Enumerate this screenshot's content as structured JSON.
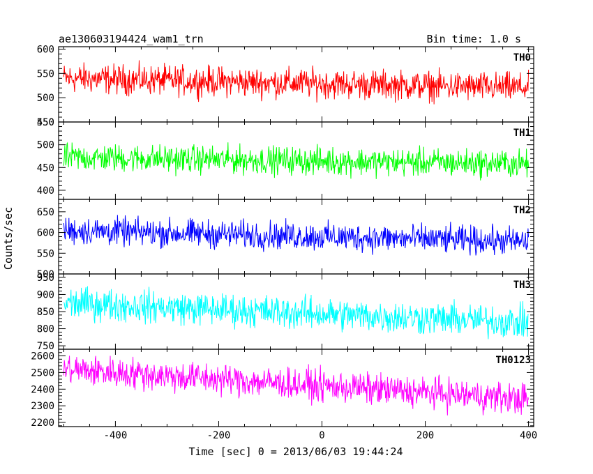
{
  "title_left": "ae130603194424_wam1_trn",
  "title_right": "Bin time: 1.0 s",
  "chart_data": {
    "type": "line",
    "xlabel": "Time [sec] 0 = 2013/06/03 19:44:24",
    "ylabel": "Counts/sec",
    "xlim": [
      -510,
      410
    ],
    "x_ticks": [
      -400,
      -200,
      0,
      200,
      400
    ],
    "x_range": [
      -500,
      400
    ],
    "bin_time_s": 1.0,
    "panels": [
      {
        "name": "TH0",
        "color": "#ff0000",
        "ylim": [
          450,
          605
        ],
        "y_ticks": [
          450,
          500,
          550,
          600
        ],
        "mean_start": 540,
        "mean_end": 520,
        "noise_halfwidth": 45
      },
      {
        "name": "TH1",
        "color": "#00ff00",
        "ylim": [
          380,
          550
        ],
        "y_ticks": [
          400,
          450,
          500,
          550
        ],
        "mean_start": 472,
        "mean_end": 458,
        "noise_halfwidth": 45
      },
      {
        "name": "TH2",
        "color": "#0000ff",
        "ylim": [
          500,
          680
        ],
        "y_ticks": [
          500,
          550,
          600,
          650
        ],
        "mean_start": 605,
        "mean_end": 578,
        "noise_halfwidth": 50
      },
      {
        "name": "TH3",
        "color": "#00ffff",
        "ylim": [
          740,
          960
        ],
        "y_ticks": [
          750,
          800,
          850,
          900,
          950
        ],
        "mean_start": 875,
        "mean_end": 818,
        "noise_halfwidth": 70
      },
      {
        "name": "TH0123",
        "color": "#ff00ff",
        "ylim": [
          2175,
          2640
        ],
        "y_ticks": [
          2200,
          2300,
          2400,
          2500,
          2600
        ],
        "mean_start": 2520,
        "mean_end": 2340,
        "noise_halfwidth": 140
      }
    ]
  }
}
